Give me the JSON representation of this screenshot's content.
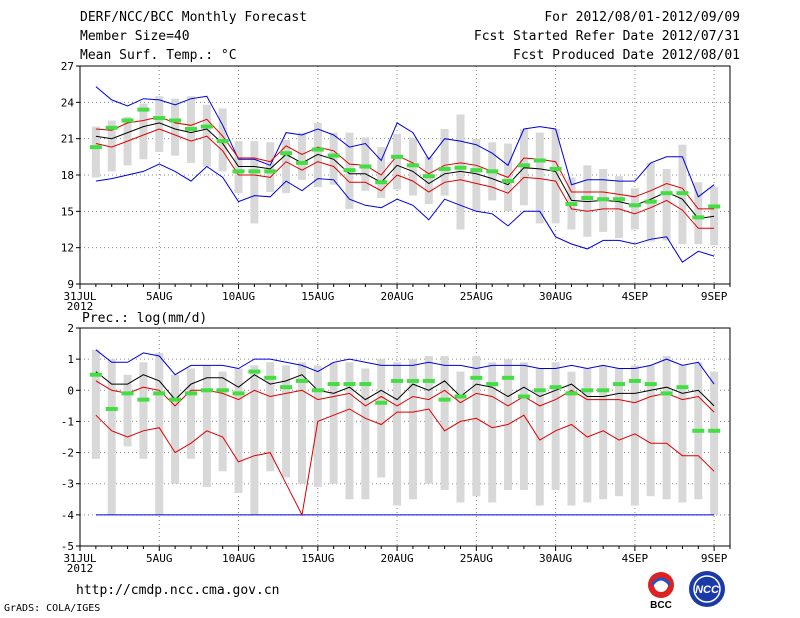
{
  "header": {
    "title": "DERF/NCC/BCC Monthly Forecast",
    "member": "Member Size=40",
    "variable": "Mean Surf. Temp.: °C",
    "period": "For 2012/08/01-2012/09/09",
    "started": "Fcst Started Refer Date 2012/07/31",
    "produced": "Fcst Produced Date 2012/08/01"
  },
  "footer": {
    "url": "http://cmdp.ncc.cma.gov.cn",
    "grads": "GrADS: COLA/IGES",
    "logo1_text": "BCC",
    "logo2_text": "NCC"
  },
  "colors": {
    "max": "#0000dd",
    "min": "#0000dd",
    "mean": "#000000",
    "spread": "#dd0000",
    "member_mean": "#44dd44",
    "box": "#d8d8d8"
  },
  "chart_data": [
    {
      "type": "box-line",
      "title": "Mean Surf. Temp.: °C",
      "xlabel": "",
      "ylabel": "",
      "ylim": [
        9,
        27
      ],
      "yticks": [
        9,
        12,
        15,
        18,
        21,
        24,
        27
      ],
      "xtick_labels": [
        "31JUL",
        "5AUG",
        "10AUG",
        "15AUG",
        "20AUG",
        "25AUG",
        "30AUG",
        "4SEP",
        "9SEP"
      ],
      "xtick_positions": [
        0,
        5,
        10,
        15,
        20,
        25,
        30,
        35,
        40
      ],
      "year_label": "2012",
      "grid": true,
      "x": [
        1,
        2,
        3,
        4,
        5,
        6,
        7,
        8,
        9,
        10,
        11,
        12,
        13,
        14,
        15,
        16,
        17,
        18,
        19,
        20,
        21,
        22,
        23,
        24,
        25,
        26,
        27,
        28,
        29,
        30,
        31,
        32,
        33,
        34,
        35,
        36,
        37,
        38,
        39,
        40
      ],
      "box_low": [
        17.8,
        18.3,
        18.8,
        19.3,
        19.9,
        19.6,
        19.0,
        18.7,
        18.3,
        16.5,
        14.0,
        16.6,
        16.5,
        17.6,
        17.0,
        17.2,
        15.2,
        16.7,
        16.1,
        16.8,
        16.3,
        15.6,
        16.3,
        13.5,
        15.0,
        15.9,
        15.0,
        15.5,
        14.0,
        14.0,
        13.5,
        12.9,
        13.3,
        12.8,
        13.5,
        12.5,
        12.6,
        12.3,
        12.3,
        12.2
      ],
      "box_high": [
        22.0,
        22.5,
        22.8,
        23.9,
        24.5,
        24.3,
        24.5,
        23.8,
        23.5,
        20.8,
        20.8,
        20.7,
        20.9,
        21.5,
        22.3,
        21.5,
        21.5,
        21.1,
        20.3,
        21.4,
        21.1,
        19.5,
        21.8,
        23.0,
        21.0,
        20.7,
        20.6,
        21.8,
        21.5,
        21.8,
        17.8,
        18.8,
        18.5,
        17.9,
        16.9,
        19.0,
        18.5,
        20.5,
        17.4,
        17.0
      ],
      "max": [
        25.3,
        24.2,
        23.7,
        24.3,
        24.2,
        23.8,
        24.3,
        24.5,
        22.1,
        19.3,
        19.3,
        18.8,
        21.5,
        21.3,
        21.8,
        21.3,
        20.3,
        20.6,
        19.2,
        22.3,
        21.5,
        19.3,
        21.0,
        20.8,
        20.5,
        19.8,
        18.8,
        21.8,
        22.0,
        21.8,
        17.2,
        17.6,
        17.6,
        17.5,
        17.5,
        19.0,
        19.5,
        19.5,
        16.2,
        17.2
      ],
      "mean": [
        21.2,
        21.0,
        21.5,
        22.0,
        22.3,
        21.8,
        21.5,
        21.8,
        20.6,
        18.7,
        18.7,
        18.5,
        19.7,
        19.0,
        19.7,
        19.3,
        18.1,
        18.1,
        17.4,
        18.8,
        18.3,
        17.3,
        18.1,
        18.3,
        18.1,
        17.7,
        17.2,
        18.6,
        18.5,
        18.3,
        15.9,
        15.8,
        15.9,
        15.8,
        15.5,
        16.0,
        16.6,
        16.0,
        14.4,
        14.6
      ],
      "upper": [
        21.8,
        21.7,
        22.3,
        22.5,
        22.8,
        22.3,
        22.1,
        22.6,
        21.2,
        19.4,
        19.4,
        19.1,
        20.4,
        19.7,
        20.3,
        20.0,
        18.9,
        18.8,
        18.0,
        19.6,
        19.0,
        18.1,
        18.8,
        19.0,
        18.8,
        18.3,
        17.8,
        19.4,
        19.3,
        19.1,
        16.6,
        16.6,
        16.6,
        16.4,
        16.2,
        16.7,
        17.3,
        16.9,
        15.2,
        15.2
      ],
      "lower": [
        20.6,
        20.3,
        20.8,
        21.3,
        21.8,
        21.3,
        20.8,
        21.2,
        20.0,
        18.0,
        18.0,
        17.8,
        19.1,
        18.4,
        19.1,
        18.7,
        17.4,
        17.4,
        16.7,
        18.0,
        17.5,
        16.6,
        17.4,
        17.6,
        17.3,
        17.0,
        16.5,
        17.8,
        17.7,
        17.5,
        15.2,
        15.0,
        15.2,
        15.2,
        14.8,
        15.3,
        15.9,
        15.1,
        13.6,
        13.6
      ],
      "min": [
        17.5,
        17.7,
        18.0,
        18.3,
        18.9,
        18.3,
        17.5,
        18.7,
        17.8,
        15.8,
        16.3,
        16.2,
        17.5,
        16.7,
        17.7,
        17.6,
        16.0,
        15.5,
        15.3,
        16.0,
        15.5,
        14.3,
        16.0,
        15.5,
        15.0,
        14.8,
        13.8,
        15.0,
        15.0,
        12.9,
        12.3,
        11.9,
        12.6,
        12.6,
        12.3,
        12.7,
        12.9,
        10.8,
        11.7,
        11.3
      ],
      "member_mean": [
        20.3,
        21.9,
        22.5,
        23.4,
        22.7,
        22.5,
        21.8,
        22.0,
        20.8,
        18.3,
        18.3,
        18.3,
        19.8,
        19.0,
        20.1,
        19.6,
        18.4,
        18.7,
        17.4,
        19.5,
        18.8,
        17.9,
        18.5,
        18.6,
        18.4,
        18.3,
        17.5,
        18.8,
        19.2,
        18.5,
        15.6,
        16.1,
        16.0,
        16.0,
        15.5,
        15.8,
        16.5,
        16.5,
        14.5,
        15.4
      ]
    },
    {
      "type": "box-line",
      "title": "Prec.: log(mm/d)",
      "xlabel": "",
      "ylabel": "",
      "ylim": [
        -5,
        2
      ],
      "yticks": [
        -5,
        -4,
        -3,
        -2,
        -1,
        0,
        1,
        2
      ],
      "xtick_labels": [
        "31JUL",
        "5AUG",
        "10AUG",
        "15AUG",
        "20AUG",
        "25AUG",
        "30AUG",
        "4SEP",
        "9SEP"
      ],
      "xtick_positions": [
        0,
        5,
        10,
        15,
        20,
        25,
        30,
        35,
        40
      ],
      "year_label": "2012",
      "grid": true,
      "x": [
        1,
        2,
        3,
        4,
        5,
        6,
        7,
        8,
        9,
        10,
        11,
        12,
        13,
        14,
        15,
        16,
        17,
        18,
        19,
        20,
        21,
        22,
        23,
        24,
        25,
        26,
        27,
        28,
        29,
        30,
        31,
        32,
        33,
        34,
        35,
        36,
        37,
        38,
        39,
        40
      ],
      "box_low": [
        -2.2,
        -4.0,
        -1.8,
        -2.2,
        -4.0,
        -3.0,
        -2.2,
        -3.1,
        -2.6,
        -3.3,
        -4.0,
        -2.6,
        -2.8,
        -3.0,
        -3.1,
        -3.0,
        -3.5,
        -3.5,
        -2.8,
        -3.7,
        -3.5,
        -3.0,
        -3.2,
        -3.6,
        -3.4,
        -3.6,
        -3.2,
        -3.2,
        -3.7,
        -3.2,
        -3.7,
        -3.6,
        -3.5,
        -3.4,
        -3.7,
        -3.4,
        -3.5,
        -3.6,
        -3.5,
        -4.0
      ],
      "box_high": [
        1.3,
        1.0,
        0.5,
        0.9,
        1.2,
        0.5,
        0.7,
        0.8,
        0.6,
        0.7,
        0.8,
        0.9,
        0.8,
        0.9,
        0.8,
        0.9,
        0.9,
        0.7,
        1.0,
        0.9,
        1.0,
        1.1,
        1.1,
        0.6,
        1.1,
        0.9,
        1.0,
        0.9,
        0.7,
        0.9,
        0.6,
        0.7,
        0.8,
        0.7,
        0.8,
        0.8,
        1.1,
        0.8,
        0.9,
        0.6
      ],
      "max": [
        1.3,
        0.9,
        0.9,
        1.2,
        1.1,
        0.5,
        0.8,
        0.8,
        0.8,
        0.7,
        1.0,
        1.0,
        0.9,
        0.8,
        0.6,
        0.9,
        1.0,
        0.9,
        0.8,
        0.8,
        0.8,
        0.9,
        0.8,
        0.8,
        0.7,
        0.8,
        0.8,
        0.8,
        0.7,
        0.7,
        0.8,
        0.7,
        0.8,
        0.7,
        0.7,
        0.8,
        1.0,
        0.8,
        0.9,
        0.2
      ],
      "mean": [
        0.6,
        0.2,
        0.2,
        0.5,
        0.3,
        -0.3,
        0.2,
        0.4,
        0.4,
        0.1,
        0.5,
        0.2,
        0.3,
        0.5,
        0.0,
        -0.1,
        0.1,
        -0.3,
        0.0,
        -0.3,
        0.2,
        0.0,
        0.3,
        -0.2,
        0.2,
        0.1,
        -0.2,
        0.1,
        -0.2,
        0.0,
        0.2,
        -0.2,
        -0.2,
        -0.1,
        -0.1,
        0.0,
        0.1,
        -0.1,
        0.0,
        -0.5
      ],
      "upper": [
        0.3,
        0.0,
        -0.1,
        0.1,
        0.0,
        -0.5,
        0.0,
        0.0,
        -0.1,
        -0.3,
        0.0,
        -0.2,
        -0.1,
        0.0,
        -0.3,
        -0.2,
        -0.1,
        -0.5,
        -0.2,
        -0.5,
        -0.2,
        -0.3,
        0.0,
        -0.4,
        -0.1,
        -0.2,
        -0.5,
        -0.2,
        -0.5,
        -0.3,
        0.0,
        -0.3,
        -0.3,
        -0.3,
        -0.4,
        -0.2,
        -0.1,
        -0.3,
        -0.2,
        -0.7
      ],
      "lower": [
        -0.8,
        -1.3,
        -1.5,
        -1.3,
        -1.2,
        -2.0,
        -1.7,
        -1.3,
        -1.5,
        -2.3,
        -2.1,
        -2.0,
        -3.0,
        -4.0,
        -4.0,
        -4.0,
        -4.0,
        -4.0,
        -4.0,
        -4.0,
        -4.0,
        -4.0,
        -4.0,
        -4.0,
        -4.0,
        -4.0,
        -4.0,
        -4.0,
        -4.0,
        -4.0,
        -4.0,
        -4.0,
        -4.0,
        -4.0,
        -4.0,
        -4.0,
        -4.0,
        -4.0,
        -4.0,
        -4.0
      ],
      "spread_upper": [
        -0.8,
        -1.3,
        -1.5,
        -1.3,
        -1.2,
        -2.0,
        -1.7,
        -1.3,
        -1.5,
        -2.3,
        -2.1,
        -2.0,
        -3.0,
        -4.0,
        -1.0,
        -0.8,
        -0.6,
        -0.9,
        -1.1,
        -0.7,
        -0.7,
        -0.6,
        -1.3,
        -1.0,
        -0.9,
        -1.2,
        -1.1,
        -0.8,
        -1.6,
        -1.3,
        -1.1,
        -1.5,
        -1.3,
        -1.6,
        -1.4,
        -1.7,
        -1.7,
        -2.1,
        -2.1,
        -2.6
      ],
      "min": [
        -4.0,
        -4.0,
        -4.0,
        -4.0,
        -4.0,
        -4.0,
        -4.0,
        -4.0,
        -4.0,
        -4.0,
        -4.0,
        -4.0,
        -4.0,
        -4.0,
        -4.0,
        -4.0,
        -4.0,
        -4.0,
        -4.0,
        -4.0,
        -4.0,
        -4.0,
        -4.0,
        -4.0,
        -4.0,
        -4.0,
        -4.0,
        -4.0,
        -4.0,
        -4.0,
        -4.0,
        -4.0,
        -4.0,
        -4.0,
        -4.0,
        -4.0,
        -4.0,
        -4.0,
        -4.0,
        -4.0
      ],
      "member_mean": [
        0.5,
        -0.6,
        -0.1,
        -0.3,
        -0.1,
        -0.3,
        -0.1,
        0.0,
        0.0,
        -0.1,
        0.6,
        0.4,
        0.1,
        0.3,
        0.0,
        0.2,
        0.2,
        0.2,
        -0.4,
        0.3,
        0.3,
        0.3,
        -0.3,
        -0.2,
        0.4,
        0.2,
        0.4,
        -0.2,
        0.0,
        0.1,
        -0.1,
        0.0,
        0.0,
        0.2,
        0.3,
        0.2,
        -0.1,
        0.1,
        -1.3,
        -1.3
      ]
    }
  ]
}
